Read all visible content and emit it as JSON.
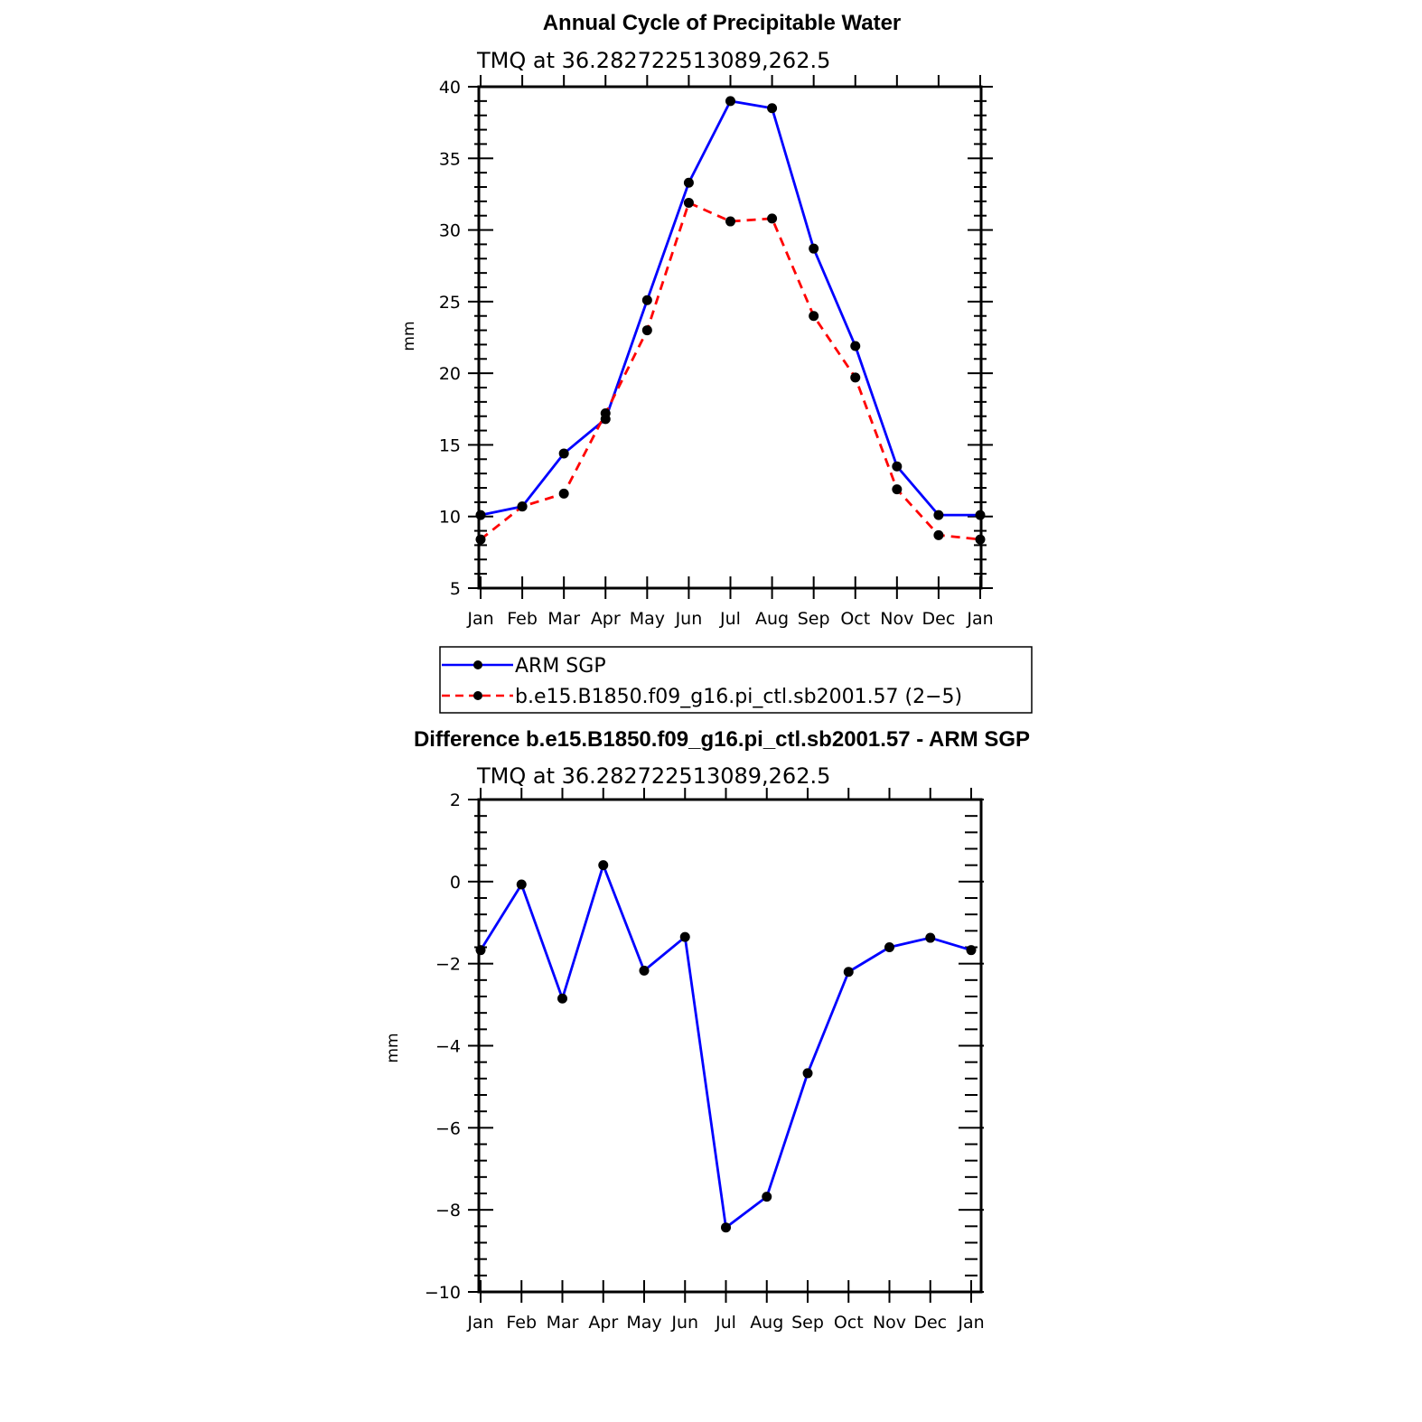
{
  "chart_data": [
    {
      "type": "line",
      "title": "Annual Cycle of Precipitable Water",
      "subtitle": "TMQ  at  36.282722513089,262.5",
      "xlabel": "",
      "ylabel": "mm",
      "categories": [
        "Jan",
        "Feb",
        "Mar",
        "Apr",
        "May",
        "Jun",
        "Jul",
        "Aug",
        "Sep",
        "Oct",
        "Nov",
        "Dec",
        "Jan"
      ],
      "ylim": [
        5,
        40
      ],
      "yticks": [
        5,
        10,
        15,
        20,
        25,
        30,
        35,
        40
      ],
      "series": [
        {
          "name": "ARM  SGP",
          "color": "#0000ff",
          "dash": "solid",
          "values": [
            10.1,
            10.7,
            14.4,
            16.8,
            25.1,
            33.3,
            39.0,
            38.5,
            28.7,
            21.9,
            13.5,
            10.1,
            10.1
          ]
        },
        {
          "name": "b.e15.B1850.f09_g16.pi_ctl.sb2001.57  (2−5)",
          "color": "#ff0000",
          "dash": "dashed",
          "values": [
            8.4,
            10.7,
            11.6,
            17.2,
            23.0,
            31.9,
            30.6,
            30.8,
            24.0,
            19.7,
            11.9,
            8.7,
            8.4
          ]
        }
      ]
    },
    {
      "type": "line",
      "title": "Difference b.e15.B1850.f09_g16.pi_ctl.sb2001.57 - ARM SGP",
      "subtitle": "TMQ  at  36.282722513089,262.5",
      "xlabel": "",
      "ylabel": "mm",
      "categories": [
        "Jan",
        "Feb",
        "Mar",
        "Apr",
        "May",
        "Jun",
        "Jul",
        "Aug",
        "Sep",
        "Oct",
        "Nov",
        "Dec",
        "Jan"
      ],
      "ylim": [
        -10,
        2
      ],
      "yticks": [
        -10,
        -8,
        -6,
        -4,
        -2,
        0,
        2
      ],
      "series": [
        {
          "name": "Difference",
          "color": "#0000ff",
          "dash": "solid",
          "values": [
            -1.67,
            -0.07,
            -2.85,
            0.4,
            -2.17,
            -1.35,
            -8.43,
            -7.68,
            -4.67,
            -2.2,
            -1.6,
            -1.37,
            -1.67
          ]
        }
      ]
    }
  ]
}
